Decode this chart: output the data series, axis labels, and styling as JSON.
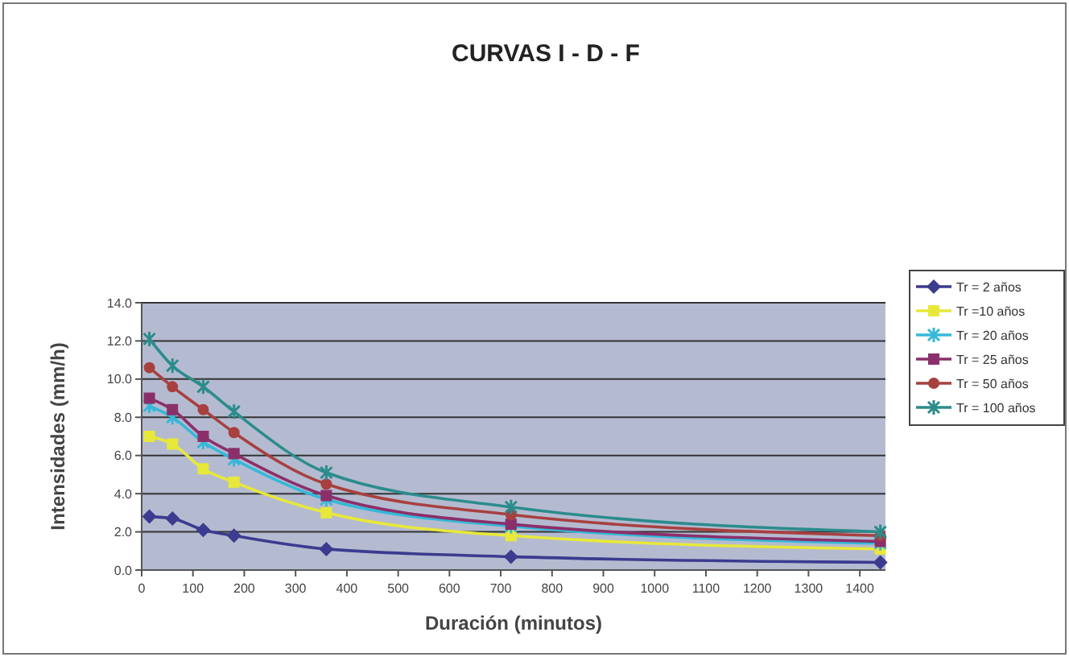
{
  "chart_data": {
    "type": "line",
    "title": "CURVAS I - D - F",
    "xlabel": "Duración (minutos)",
    "ylabel": "Intensidades (mm/h)",
    "x": [
      15,
      60,
      120,
      180,
      360,
      720,
      1440
    ],
    "xlim": [
      0,
      1450
    ],
    "xticks": [
      0,
      100,
      200,
      300,
      400,
      500,
      600,
      700,
      800,
      900,
      1000,
      1100,
      1200,
      1300,
      1400
    ],
    "ylim": [
      0,
      14
    ],
    "yticks": [
      {
        "value": 0,
        "label": "0.0"
      },
      {
        "value": 2,
        "label": "2.0"
      },
      {
        "value": 4,
        "label": "4.0"
      },
      {
        "value": 6,
        "label": "6.0"
      },
      {
        "value": 8,
        "label": "8.0"
      },
      {
        "value": 10,
        "label": "10.0"
      },
      {
        "value": 12,
        "label": "12.0"
      },
      {
        "value": 14,
        "label": "14.0"
      }
    ],
    "grid": "y",
    "legend": "right",
    "series": [
      {
        "name": "Tr = 2 años",
        "color": "#3b3b8f",
        "marker": "diamond",
        "values": [
          2.8,
          2.7,
          2.1,
          1.8,
          1.1,
          0.7,
          0.4
        ]
      },
      {
        "name": "Tr =10 años",
        "color": "#e8e83a",
        "marker": "square",
        "values": [
          7.0,
          6.6,
          5.3,
          4.6,
          3.0,
          1.8,
          1.1
        ]
      },
      {
        "name": "Tr = 20 años",
        "color": "#35b8d8",
        "marker": "cross",
        "values": [
          8.6,
          8.0,
          6.7,
          5.8,
          3.7,
          2.3,
          1.4
        ]
      },
      {
        "name": "Tr = 25 años",
        "color": "#8b2f6a",
        "marker": "square",
        "values": [
          9.0,
          8.4,
          7.0,
          6.1,
          3.9,
          2.4,
          1.5
        ]
      },
      {
        "name": "Tr = 50 años",
        "color": "#a84040",
        "marker": "circle",
        "values": [
          10.6,
          9.6,
          8.4,
          7.2,
          4.5,
          2.9,
          1.8
        ]
      },
      {
        "name": "Tr = 100 años",
        "color": "#2b8c8c",
        "marker": "cross",
        "values": [
          12.1,
          10.7,
          9.6,
          8.3,
          5.1,
          3.3,
          2.0
        ]
      }
    ]
  }
}
